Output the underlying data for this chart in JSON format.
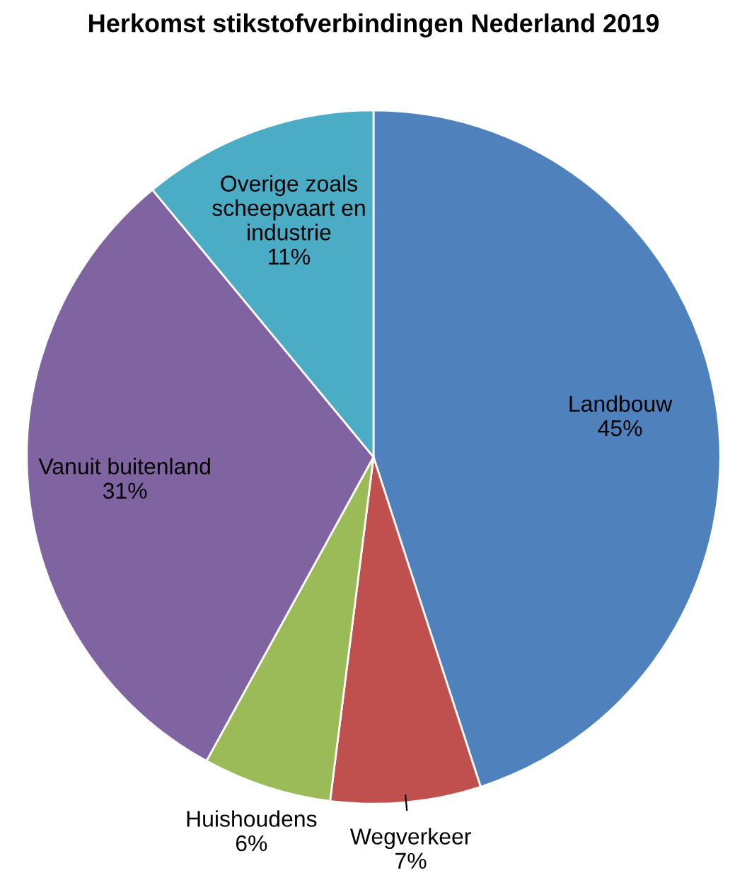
{
  "chart_data": {
    "type": "pie",
    "title": "Herkomst stikstofverbindingen Nederland 2019",
    "categories": [
      "Landbouw",
      "Wegverkeer",
      "Huishoudens",
      "Vanuit buitenland",
      "Overige zoals\nscheepvaart en\nindustrie"
    ],
    "values": [
      45,
      7,
      6,
      31,
      11
    ],
    "value_labels": [
      "45%",
      "7%",
      "6%",
      "31%",
      "11%"
    ],
    "colors": [
      "#4f81bd",
      "#c0504d",
      "#9bbb59",
      "#8064a2",
      "#4bacc6"
    ],
    "legend": false
  }
}
